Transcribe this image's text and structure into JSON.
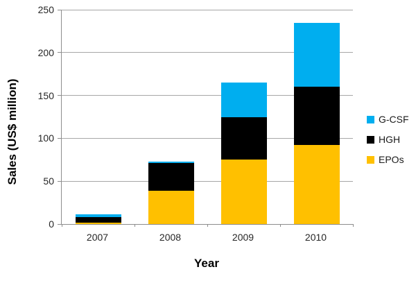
{
  "chart_data": {
    "type": "bar",
    "stacked": true,
    "title": "",
    "categories": [
      "2007",
      "2008",
      "2009",
      "2010"
    ],
    "series": [
      {
        "name": "EPOs",
        "color": "#FFC000",
        "values": [
          2,
          39,
          75,
          92
        ]
      },
      {
        "name": "HGH",
        "color": "#000000",
        "values": [
          6,
          32,
          50,
          68
        ]
      },
      {
        "name": "G-CSF",
        "color": "#00AEEF",
        "values": [
          3,
          2,
          40,
          75
        ]
      }
    ],
    "totals": [
      11,
      73,
      165,
      235
    ],
    "xlabel": "Year",
    "ylabel": "Sales (US$ million)",
    "ylim": [
      0,
      250
    ],
    "y_ticks": [
      0,
      50,
      100,
      150,
      200,
      250
    ],
    "grid": true,
    "legend_position": "right",
    "legend_order": [
      "G-CSF",
      "HGH",
      "EPOs"
    ],
    "axis_color": "#8c8c8c",
    "gridline_color": "#a6a6a6",
    "tick_label_color": "#262626",
    "background_color": "#ffffff"
  }
}
